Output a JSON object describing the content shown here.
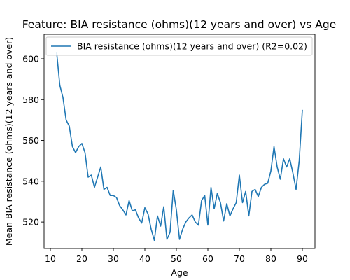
{
  "chart_data": {
    "type": "line",
    "title": "Feature: BIA resistance (ohms)(12 years and over) vs Age",
    "xlabel": "Age",
    "ylabel": "Mean BIA resistance (ohms)(12 years and over)",
    "xlim": [
      8,
      94
    ],
    "ylim": [
      507,
      612
    ],
    "xticks": [
      10,
      20,
      30,
      40,
      50,
      60,
      70,
      80,
      90
    ],
    "yticks": [
      520,
      540,
      560,
      580,
      600
    ],
    "grid": false,
    "legend_position": "top-right",
    "series": [
      {
        "name": "BIA resistance (ohms)(12 years and over) (R2=0.02)",
        "color": "#1f77b4",
        "x": [
          12,
          13,
          14,
          15,
          16,
          17,
          18,
          19,
          20,
          21,
          22,
          23,
          24,
          25,
          26,
          27,
          28,
          29,
          30,
          31,
          32,
          33,
          34,
          35,
          36,
          37,
          38,
          39,
          40,
          41,
          42,
          43,
          44,
          45,
          46,
          47,
          48,
          49,
          50,
          51,
          52,
          53,
          54,
          55,
          56,
          57,
          58,
          59,
          60,
          61,
          62,
          63,
          64,
          65,
          66,
          67,
          68,
          69,
          70,
          71,
          72,
          73,
          74,
          75,
          76,
          77,
          78,
          79,
          80,
          81,
          82,
          83,
          84,
          85,
          86,
          87,
          88,
          89,
          90
        ],
        "y": [
          603,
          587,
          581,
          570,
          567,
          557,
          554,
          557,
          558.5,
          554,
          542,
          543,
          537,
          542,
          547,
          536,
          537,
          533,
          533,
          532,
          528,
          526,
          523.5,
          530.5,
          525.5,
          526,
          522,
          519.5,
          527,
          524,
          516.5,
          511,
          523,
          518,
          527.5,
          511.5,
          515,
          535.5,
          526,
          511.5,
          516.5,
          520,
          522,
          523.5,
          520,
          518.5,
          530.5,
          533,
          518.5,
          537,
          526.5,
          534,
          529.5,
          520.5,
          529,
          523,
          526.5,
          529.5,
          543,
          529.5,
          535,
          523,
          535,
          536,
          532.5,
          537,
          538.5,
          539,
          545,
          557,
          547,
          541,
          551,
          547,
          551,
          544,
          536,
          550,
          575
        ]
      }
    ]
  }
}
